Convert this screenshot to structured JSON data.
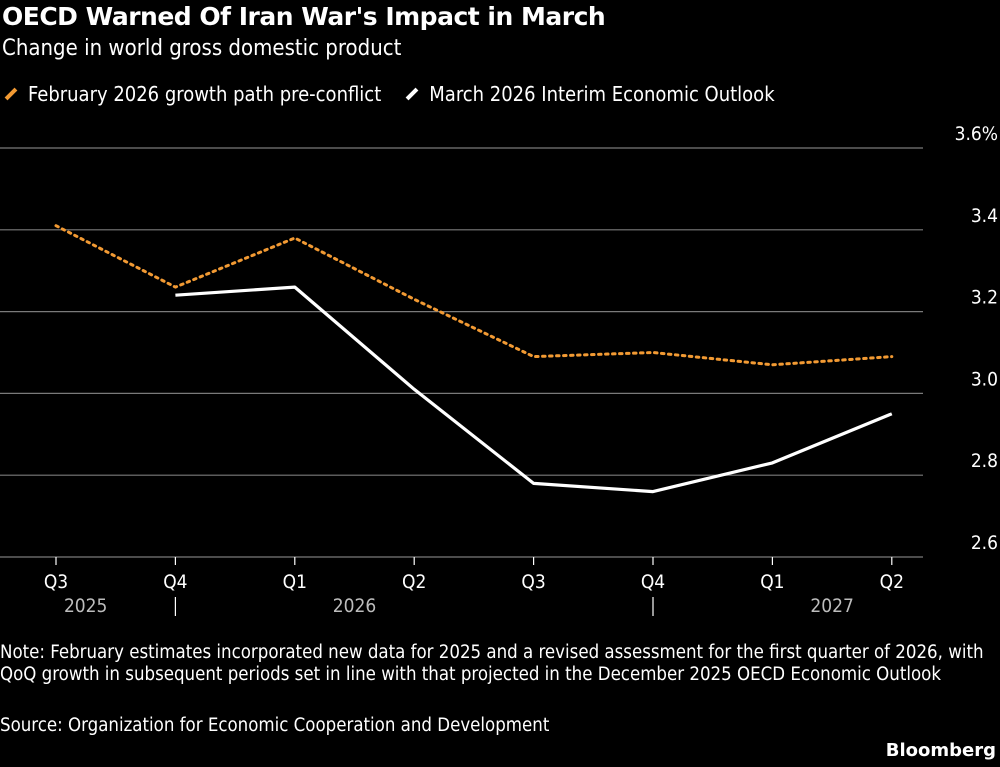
{
  "header": {
    "title": "OECD Warned Of Iran War's Impact in March",
    "subtitle": "Change in world gross domestic product"
  },
  "footer": {
    "note": "Note: February estimates incorporated new data for 2025 and a revised assessment for the first quarter of 2026, with QoQ growth in subsequent periods set in line with that projected in the December 2025 OECD Economic Outlook",
    "source": "Source: Organization for Economic Cooperation and Development",
    "brand": "Bloomberg"
  },
  "colors": {
    "background": "#000000",
    "gridline": "#7a7a7a",
    "text": "#ffffff",
    "series_feb": "#f29a33",
    "series_mar": "#ffffff"
  },
  "chart_data": {
    "type": "line",
    "title": "OECD Warned Of Iran War's Impact in March",
    "subtitle": "Change in world gross domestic product",
    "x": [
      "Q3 2025",
      "Q4 2025",
      "Q1 2026",
      "Q2 2026",
      "Q3 2026",
      "Q4 2026",
      "Q1 2027",
      "Q2 2027"
    ],
    "x_tick_labels": [
      "Q3",
      "Q4",
      "Q1",
      "Q2",
      "Q3",
      "Q4",
      "Q1",
      "Q2"
    ],
    "x_year_labels": [
      {
        "label": "2025",
        "between": [
          "Q3 2025",
          "Q4 2025"
        ],
        "center": "Q3 2025"
      },
      {
        "label": "2026",
        "center_between": [
          "Q1 2026",
          "Q2 2026"
        ]
      },
      {
        "label": "2027",
        "center_between": [
          "Q1 2027",
          "Q2 2027"
        ]
      }
    ],
    "year_separators": [
      "Q4 2025",
      "Q4 2026"
    ],
    "y_ticks": [
      2.6,
      2.8,
      3.0,
      3.2,
      3.4,
      3.6
    ],
    "y_tick_labels": [
      "2.6",
      "2.8",
      "3.0",
      "3.2",
      "3.4",
      "3.6%"
    ],
    "ylim": [
      2.6,
      3.6
    ],
    "y_axis_side": "right",
    "grid": true,
    "legend_placement": "top-left",
    "series": [
      {
        "name": "February 2026 growth path pre-conflict",
        "style": "dotted",
        "color": "#f29a33",
        "values": [
          3.41,
          3.26,
          3.38,
          3.23,
          3.09,
          3.1,
          3.07,
          3.09
        ]
      },
      {
        "name": "March 2026 Interim Economic Outlook",
        "style": "solid",
        "color": "#ffffff",
        "values": [
          null,
          3.24,
          3.26,
          3.01,
          2.78,
          2.76,
          2.83,
          2.95
        ]
      }
    ]
  }
}
